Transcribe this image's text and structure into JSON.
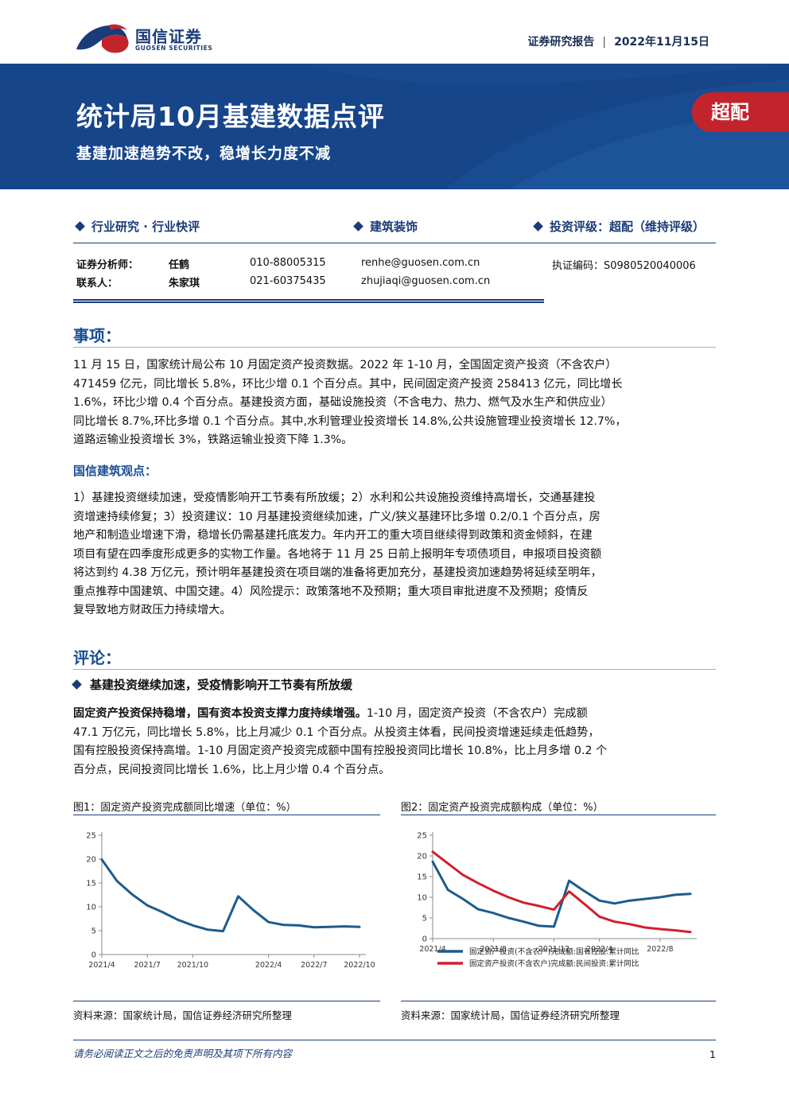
{
  "header": {
    "company_cn": "国信证券",
    "company_en": "GUOSEN SECURITIES",
    "report_type": "证券研究报告",
    "date": "2022年11月15日"
  },
  "banner": {
    "title": "统计局10月基建数据点评",
    "subtitle": "基建加速趋势不改，稳增长力度不减",
    "rating": "超配"
  },
  "categories": {
    "left": "行业研究 · 行业快评",
    "middle": "建筑装饰",
    "right": "投资评级：超配（维持评级）"
  },
  "analysts": [
    {
      "role": "证券分析师：",
      "name": "任鹤",
      "phone": "010-88005315",
      "email": "renhe@guosen.com.cn",
      "cert": "执证编码：S0980520040006"
    },
    {
      "role": "联系人：",
      "name": "朱家琪",
      "phone": "021-60375435",
      "email": "zhujiaqi@guosen.com.cn",
      "cert": ""
    }
  ],
  "section_event": {
    "title": "事项：",
    "lines": [
      "11 月 15 日，国家统计局公布 10 月固定资产投资数据。2022 年 1-10 月，全国固定资产投资（不含农户）",
      "471459 亿元，同比增长 5.8%，环比少增 0.1 个百分点。其中，民间固定资产投资 258413 亿元，同比增长",
      "1.6%，环比少增 0.4 个百分点。基建投资方面，基础设施投资（不含电力、热力、燃气及水生产和供应业）",
      "同比增长 8.7%,环比多增 0.1 个百分点。其中,水利管理业投资增长 14.8%,公共设施管理业投资增长 12.7%，",
      "道路运输业投资增长 3%，铁路运输业投资下降 1.3%。"
    ]
  },
  "view": {
    "title": "国信建筑观点：",
    "lines": [
      "1）基建投资继续加速，受疫情影响开工节奏有所放缓；2）水利和公共设施投资维持高增长，交通基建投",
      "资增速持续修复；3）投资建议：10 月基建投资继续加速，广义/狭义基建环比多增 0.2/0.1 个百分点，房",
      "地产和制造业增速下滑，稳增长仍需基建托底发力。年内开工的重大项目继续得到政策和资金倾斜，在建",
      "项目有望在四季度形成更多的实物工作量。各地将于 11 月 25 日前上报明年专项债项目，申报项目投资额",
      "将达到约 4.38 万亿元，预计明年基建投资在项目端的准备将更加充分，基建投资加速趋势将延续至明年，",
      "重点推荐中国建筑、中国交建。4）风险提示：政策落地不及预期；重大项目审批进度不及预期；疫情反",
      "复导致地方财政压力持续增大。"
    ]
  },
  "section_comment": {
    "title": "评论：",
    "bullet": "基建投资继续加速，受疫情影响开工节奏有所放缓",
    "lead_bold": "固定资产投资保持稳增，国有资本投资支撑力度持续增强。",
    "lines": [
      "1-10 月，固定资产投资（不含农户）完成额",
      "47.1 万亿元，同比增长 5.8%，比上月减少 0.1 个百分点。从投资主体看，民间投资增速延续走低趋势，",
      "国有控股投资保持高增。1-10 月固定资产投资完成额中国有控股投资同比增长 10.8%，比上月多增 0.2 个",
      "百分点，民间投资同比增长 1.6%，比上月少增 0.4 个百分点。"
    ]
  },
  "figures": {
    "fig1_title": "图1：固定资产投资完成额同比增速（单位：%）",
    "fig2_title": "图2：固定资产投资完成额构成（单位：%）",
    "source": "资料来源：国家统计局，国信证券经济研究所整理"
  },
  "chart_data": [
    {
      "type": "line",
      "title": "图1：固定资产投资完成额同比增速（单位：%）",
      "x": [
        "2021/4",
        "2021/5",
        "2021/6",
        "2021/7",
        "2021/8",
        "2021/9",
        "2021/10",
        "2021/11",
        "2021/12",
        "2022/2",
        "2022/3",
        "2022/4",
        "2022/5",
        "2022/6",
        "2022/7",
        "2022/8",
        "2022/9",
        "2022/10"
      ],
      "x_ticks": [
        "2021/4",
        "2021/7",
        "2021/10",
        "2022/1",
        "2022/4",
        "2022/7",
        "2022/10"
      ],
      "series": [
        {
          "name": "",
          "color": "#1b5c8e",
          "values": [
            19.9,
            15.4,
            12.6,
            10.3,
            8.9,
            7.3,
            6.1,
            5.2,
            4.9,
            12.2,
            9.3,
            6.8,
            6.2,
            6.1,
            5.7,
            5.8,
            5.9,
            5.8
          ]
        }
      ],
      "ylim": [
        0,
        25
      ],
      "yticks": [
        0,
        5,
        10,
        15,
        20,
        25
      ],
      "grid": false
    },
    {
      "type": "line",
      "title": "图2：固定资产投资完成额构成（单位：%）",
      "x": [
        "2021/4",
        "2021/5",
        "2021/6",
        "2021/7",
        "2021/8",
        "2021/9",
        "2021/10",
        "2021/11",
        "2021/12",
        "2022/2",
        "2022/3",
        "2022/4",
        "2022/5",
        "2022/6",
        "2022/7",
        "2022/8",
        "2022/9",
        "2022/10"
      ],
      "x_ticks": [
        "2021/4",
        "2021/8",
        "2021/12",
        "2022/4",
        "2022/8"
      ],
      "series": [
        {
          "name": "固定资产投资(不含农户)完成额:国有控股:累计同比",
          "color": "#1b5c8e",
          "values": [
            18.6,
            11.8,
            9.6,
            7.1,
            6.2,
            5.0,
            4.1,
            3.1,
            2.9,
            14.0,
            11.5,
            9.2,
            8.5,
            9.2,
            9.6,
            10.0,
            10.6,
            10.8
          ]
        },
        {
          "name": "固定资产投资(不含农户)完成额:民间投资:累计同比",
          "color": "#d0202e",
          "values": [
            21.0,
            18.2,
            15.4,
            13.4,
            11.6,
            10.0,
            8.7,
            7.9,
            7.0,
            11.4,
            8.4,
            5.3,
            4.1,
            3.5,
            2.7,
            2.3,
            2.0,
            1.6
          ]
        }
      ],
      "ylim": [
        0,
        25
      ],
      "yticks": [
        0,
        5,
        10,
        15,
        20,
        25
      ],
      "legend": "bottom",
      "grid": false
    }
  ],
  "footer": {
    "disclaimer": "请务必阅读正文之后的免责声明及其项下所有内容",
    "page": "1"
  },
  "colors": {
    "brand_blue": "#1a3c78",
    "banner_blue": "#16458a",
    "rating_red": "#c3242b",
    "series_blue": "#1b5c8e",
    "series_red": "#d0202e"
  }
}
